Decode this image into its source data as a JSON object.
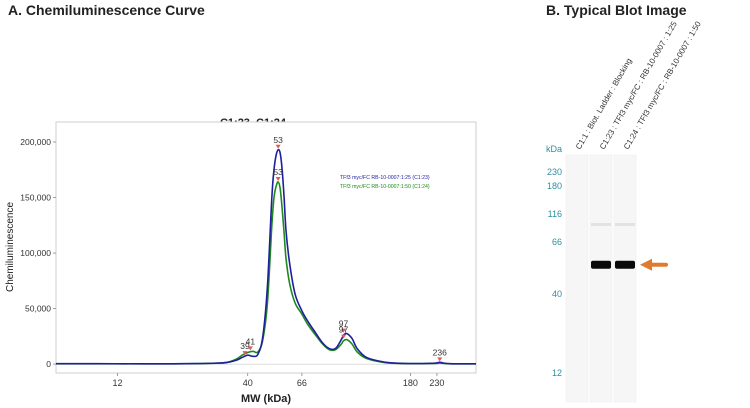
{
  "panel_a": {
    "heading": "A. Chemiluminescence Curve"
  },
  "panel_b": {
    "heading": "B.    Typical Blot Image"
  },
  "chart_data": [
    {
      "type": "line",
      "title": "C1:23, C1:24",
      "xlabel": "MW (kDa)",
      "ylabel": "Chemiluminescence",
      "x_scale": "log",
      "xlim": [
        6.8,
        330
      ],
      "ylim": [
        -8000,
        218000
      ],
      "x_ticks": [
        12,
        40,
        66,
        180,
        230
      ],
      "y_ticks": [
        0,
        50000,
        100000,
        150000,
        200000
      ],
      "y_tick_labels": [
        "0",
        "50,000",
        "100,000",
        "150,000",
        "200,000"
      ],
      "colors": {
        "blue": "#1f1f9e",
        "green": "#1d8a1d",
        "marker": "#e05a5a"
      },
      "series": [
        {
          "name": "TFf3 myc/FC RB-10-0007:1:25 (C1:23)",
          "color": "#1f1f9e",
          "x": [
            6.8,
            10,
            15,
            20,
            25,
            30,
            33,
            36,
            38,
            40,
            42,
            44,
            46,
            48,
            50,
            51,
            52,
            53,
            54,
            55,
            56,
            57,
            59,
            62,
            66,
            70,
            75,
            80,
            85,
            90,
            95,
            97,
            100,
            105,
            110,
            120,
            140,
            160,
            180,
            200,
            225,
            236,
            245,
            260,
            280,
            330
          ],
          "y": [
            400,
            350,
            300,
            300,
            500,
            900,
            1500,
            3500,
            6000,
            8000,
            7000,
            9000,
            25000,
            70000,
            150000,
            175000,
            188000,
            193000,
            190000,
            175000,
            150000,
            120000,
            90000,
            63000,
            48000,
            38000,
            28000,
            19000,
            14000,
            14000,
            22000,
            26000,
            27500,
            23000,
            14000,
            6000,
            2000,
            800,
            500,
            500,
            800,
            1600,
            900,
            400,
            300,
            300
          ]
        },
        {
          "name": "TFf3 myc/FC RB-10-0007:1:50 (C1:24)",
          "color": "#1d8a1d",
          "x": [
            6.8,
            10,
            15,
            20,
            25,
            30,
            33,
            36,
            38,
            40,
            42,
            44,
            46,
            48,
            50,
            51,
            52,
            53,
            54,
            55,
            56,
            57,
            59,
            62,
            66,
            70,
            75,
            80,
            85,
            90,
            95,
            97,
            100,
            105,
            110,
            120,
            140,
            160,
            180,
            200,
            225,
            236,
            245,
            260,
            280,
            330
          ],
          "y": [
            300,
            250,
            250,
            250,
            400,
            800,
            1500,
            4500,
            8000,
            10500,
            11500,
            11000,
            22000,
            55000,
            125000,
            150000,
            160000,
            164000,
            158000,
            140000,
            118000,
            95000,
            72000,
            55000,
            45000,
            35000,
            26000,
            18000,
            13000,
            13000,
            18000,
            21000,
            22000,
            18000,
            11000,
            5000,
            1600,
            600,
            400,
            400,
            600,
            1000,
            600,
            300,
            250,
            250
          ]
        }
      ],
      "peak_labels": [
        {
          "text": "39",
          "x": 39,
          "y": 7200
        },
        {
          "text": "41",
          "x": 41,
          "y": 11500
        },
        {
          "text": "53",
          "x": 53,
          "y": 193000
        },
        {
          "text": "53",
          "x": 53,
          "y": 164000
        },
        {
          "text": "97",
          "x": 97,
          "y": 27500
        },
        {
          "text": "97",
          "x": 97,
          "y": 22000
        },
        {
          "text": "236",
          "x": 236,
          "y": 1600
        }
      ],
      "legend_position": "top-right",
      "grid": false
    },
    {
      "type": "blot",
      "axis_unit": "kDa",
      "marker_labels": [
        {
          "text": "230",
          "value": 230
        },
        {
          "text": "180",
          "value": 180
        },
        {
          "text": "116",
          "value": 116
        },
        {
          "text": "66",
          "value": 66
        },
        {
          "text": "40",
          "value": 40
        },
        {
          "text": "12",
          "value": 12
        }
      ],
      "lanes": [
        {
          "label": "C1:1 : Biot. Ladder : Blocking",
          "band_kda": null
        },
        {
          "label": "C1:23 : TFf3 myc/FC : RB-10-0007 : 1:25",
          "band_kda": 53
        },
        {
          "label": "C1:24 : TFf3 myc/FC : RB-10-0007 : 1:50",
          "band_kda": 53
        }
      ],
      "arrow_color": "#e07a2e",
      "marker_color": "#2d8f9f"
    }
  ]
}
